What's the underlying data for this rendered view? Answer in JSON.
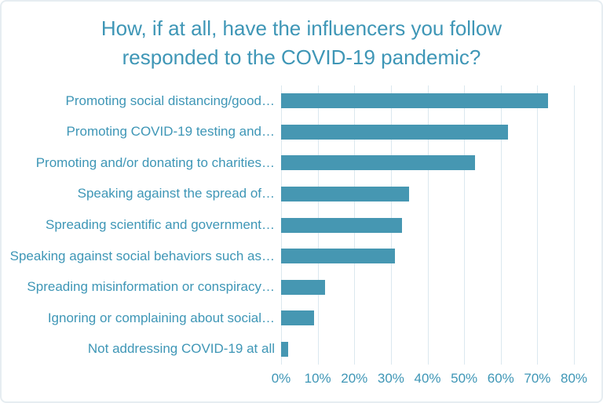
{
  "chart_data": {
    "type": "bar",
    "orientation": "horizontal",
    "title": "How, if at all, have the influencers you follow responded to the COVID-19 pandemic?",
    "categories": [
      "Promoting social distancing/good…",
      "Promoting COVID-19 testing and…",
      "Promoting and/or donating to charities…",
      "Speaking against the spread of…",
      "Spreading scientific and government…",
      "Speaking against social behaviors such as…",
      "Spreading misinformation or conspiracy…",
      "Ignoring or complaining about social…",
      "Not addressing COVID-19 at all"
    ],
    "values": [
      73,
      62,
      53,
      35,
      33,
      31,
      12,
      9,
      2
    ],
    "value_unit": "%",
    "x_ticks": [
      "0%",
      "10%",
      "20%",
      "30%",
      "40%",
      "50%",
      "60%",
      "70%",
      "80%"
    ],
    "xlim": [
      0,
      80
    ],
    "xlabel": "",
    "ylabel": "",
    "grid": "vertical-only",
    "legend": "none",
    "colors": {
      "bar": "#4697b2",
      "text": "#3e96b6",
      "gridline": "#dbe8ef",
      "card_border": "#e6edf1",
      "background": "#ffffff"
    }
  }
}
